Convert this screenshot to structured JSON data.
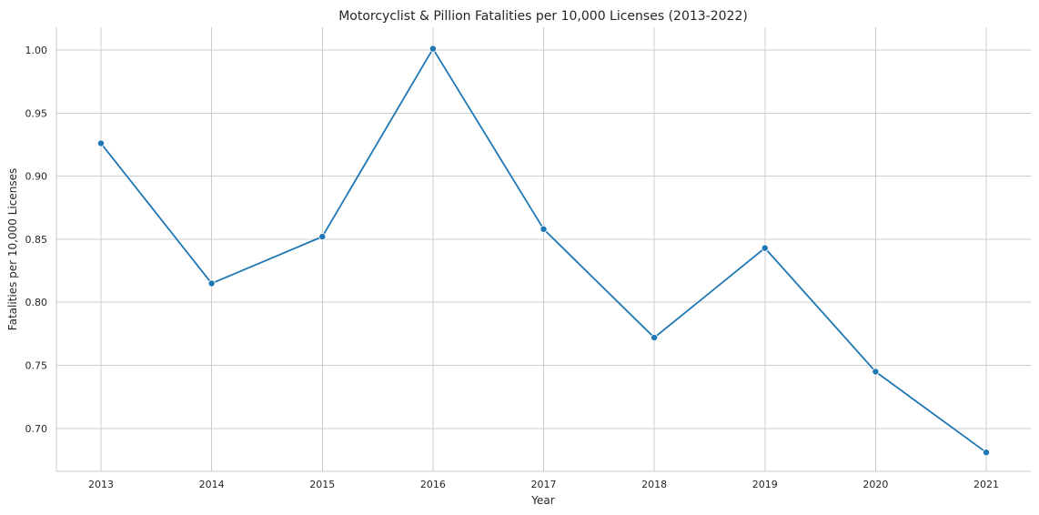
{
  "chart_data": {
    "type": "line",
    "title": "Motorcyclist & Pillion Fatalities per 10,000 Licenses (2013-2022)",
    "xlabel": "Year",
    "ylabel": "Fatalities per 10,000 Licenses",
    "x": [
      "2013",
      "2014",
      "2015",
      "2016",
      "2017",
      "2018",
      "2019",
      "2020",
      "2021"
    ],
    "series": [
      {
        "values": [
          0.926,
          0.815,
          0.852,
          1.001,
          0.858,
          0.772,
          0.843,
          0.745,
          0.681
        ],
        "color": "#1f77b4"
      }
    ],
    "ylim": [
      0.666,
      1.018
    ],
    "yticks": [
      "0.70",
      "0.75",
      "0.80",
      "0.85",
      "0.90",
      "0.95",
      "1.00"
    ],
    "grid": true,
    "legend": "none"
  }
}
